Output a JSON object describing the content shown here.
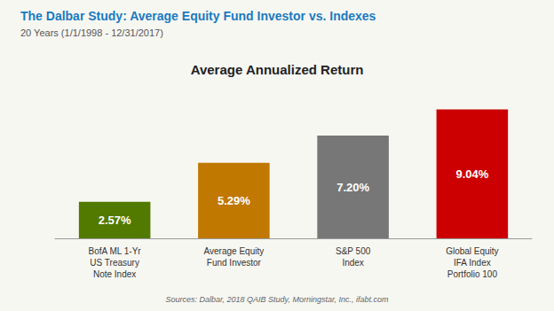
{
  "chart_data": {
    "type": "bar",
    "title": "The Dalbar Study: Average Equity Fund Investor vs. Indexes",
    "subtitle": "20 Years (1/1/1998 - 12/31/2017)",
    "annotations": [
      "Average Annualized Return",
      "Sources: Dalbar, 2018 QAIB Study, Morningstar, Inc., ifabt.com"
    ],
    "categories": [
      "BofA ML 1-Yr\nUS Treasury\nNote Index",
      "Average Equity\nFund Investor",
      "S&P 500\nIndex",
      "Global Equity\nIFA Index\nPortfolio 100"
    ],
    "values": [
      2.57,
      5.29,
      7.2,
      9.04
    ],
    "value_labels": [
      "2.57%",
      "5.29%",
      "7.20%",
      "9.04%"
    ],
    "data_labels": true,
    "colors": [
      "#527a00",
      "#c07800",
      "#777777",
      "#cc0000"
    ],
    "ylim": [
      0,
      10.5
    ],
    "tick_labels": "x",
    "grid": false
  }
}
